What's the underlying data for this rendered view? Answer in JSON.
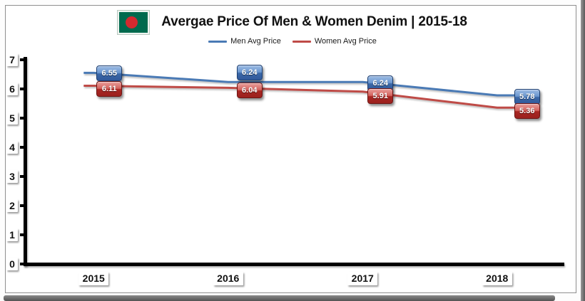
{
  "page": {
    "title": "Avergae Price Of Men & Women Denim | 2015-18"
  },
  "flag": {
    "name": "bangladesh-flag",
    "field_color": "#006a4e",
    "circle_color": "#d4292f"
  },
  "chart_data": {
    "type": "line",
    "title": "Avergae Price Of Men & Women Denim | 2015-18",
    "categories": [
      "2015",
      "2016",
      "2017",
      "2018"
    ],
    "series": [
      {
        "name": "Men Avg Price",
        "color": "#4a7ab5",
        "values": [
          6.55,
          6.24,
          6.24,
          5.78
        ]
      },
      {
        "name": "Women Avg Price",
        "color": "#bf4b47",
        "values": [
          6.11,
          6.04,
          5.91,
          5.36
        ]
      }
    ],
    "xlabel": "",
    "ylabel": "",
    "ylim": [
      0,
      7
    ],
    "yticks": [
      0,
      1,
      2,
      3,
      4,
      5,
      6,
      7
    ],
    "grid": false,
    "data_labels": true,
    "legend_position": "top-center",
    "label_box_colors": {
      "men_top": "#9dbce4",
      "men_bottom": "#31599b",
      "women_top": "#e9a19d",
      "women_bottom": "#9c211e"
    },
    "axis_color": "#000000"
  }
}
